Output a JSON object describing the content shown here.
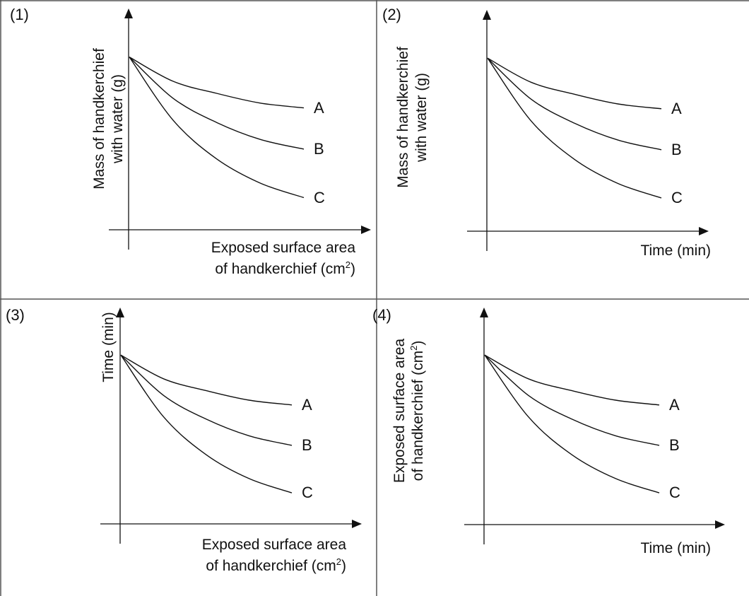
{
  "chart_data": [
    {
      "type": "line",
      "panel_label": "(1)",
      "xlabel": "Exposed surface area of handkerchief (cm²)",
      "xlabel_lines": [
        "Exposed surface area",
        "of handkerchief (cm",
        "2",
        ")"
      ],
      "ylabel": "Mass of handkerchief with water (g)",
      "ylabel_lines": [
        "Mass of handkerchief",
        "with water (g)"
      ],
      "series": [
        {
          "name": "A",
          "x": [
            0,
            0.25,
            0.5,
            0.75,
            1.0
          ],
          "values": [
            0.8,
            0.7,
            0.65,
            0.61,
            0.59
          ]
        },
        {
          "name": "B",
          "x": [
            0,
            0.25,
            0.5,
            0.75,
            1.0
          ],
          "values": [
            0.8,
            0.63,
            0.53,
            0.46,
            0.42
          ]
        },
        {
          "name": "C",
          "x": [
            0,
            0.25,
            0.5,
            0.75,
            1.0
          ],
          "values": [
            0.8,
            0.54,
            0.38,
            0.28,
            0.22
          ]
        }
      ]
    },
    {
      "type": "line",
      "panel_label": "(2)",
      "xlabel": "Time (min)",
      "xlabel_lines": [
        "Time (min)"
      ],
      "ylabel": "Mass of handkerchief with water (g)",
      "ylabel_lines": [
        "Mass of handkerchief",
        "with water (g)"
      ],
      "series": [
        {
          "name": "A",
          "x": [
            0,
            0.25,
            0.5,
            0.75,
            1.0
          ],
          "values": [
            0.8,
            0.7,
            0.65,
            0.61,
            0.59
          ]
        },
        {
          "name": "B",
          "x": [
            0,
            0.25,
            0.5,
            0.75,
            1.0
          ],
          "values": [
            0.8,
            0.63,
            0.53,
            0.46,
            0.42
          ]
        },
        {
          "name": "C",
          "x": [
            0,
            0.25,
            0.5,
            0.75,
            1.0
          ],
          "values": [
            0.8,
            0.54,
            0.38,
            0.28,
            0.22
          ]
        }
      ]
    },
    {
      "type": "line",
      "panel_label": "(3)",
      "xlabel": "Exposed surface area of handkerchief (cm²)",
      "xlabel_lines": [
        "Exposed surface area",
        "of handkerchief (cm",
        "2",
        ")"
      ],
      "ylabel": "Time (min)",
      "ylabel_lines": [
        "Time (min)"
      ],
      "series": [
        {
          "name": "A",
          "x": [
            0,
            0.25,
            0.5,
            0.75,
            1.0
          ],
          "values": [
            0.8,
            0.7,
            0.65,
            0.61,
            0.59
          ]
        },
        {
          "name": "B",
          "x": [
            0,
            0.25,
            0.5,
            0.75,
            1.0
          ],
          "values": [
            0.8,
            0.63,
            0.53,
            0.46,
            0.42
          ]
        },
        {
          "name": "C",
          "x": [
            0,
            0.25,
            0.5,
            0.75,
            1.0
          ],
          "values": [
            0.8,
            0.54,
            0.38,
            0.28,
            0.22
          ]
        }
      ]
    },
    {
      "type": "line",
      "panel_label": "(4)",
      "xlabel": "Time (min)",
      "xlabel_lines": [
        "Time (min)"
      ],
      "ylabel": "Exposed surface area of handkerchief (cm²)",
      "ylabel_lines": [
        "Exposed surface area",
        "of handkerchief (cm",
        "2",
        ")"
      ],
      "series": [
        {
          "name": "A",
          "x": [
            0,
            0.25,
            0.5,
            0.75,
            1.0
          ],
          "values": [
            0.8,
            0.7,
            0.65,
            0.61,
            0.59
          ]
        },
        {
          "name": "B",
          "x": [
            0,
            0.25,
            0.5,
            0.75,
            1.0
          ],
          "values": [
            0.8,
            0.63,
            0.53,
            0.46,
            0.42
          ]
        },
        {
          "name": "C",
          "x": [
            0,
            0.25,
            0.5,
            0.75,
            1.0
          ],
          "values": [
            0.8,
            0.54,
            0.38,
            0.28,
            0.22
          ]
        }
      ]
    }
  ],
  "colors": {
    "ink": "#111111",
    "border": "#555555",
    "background": "#ffffff"
  }
}
